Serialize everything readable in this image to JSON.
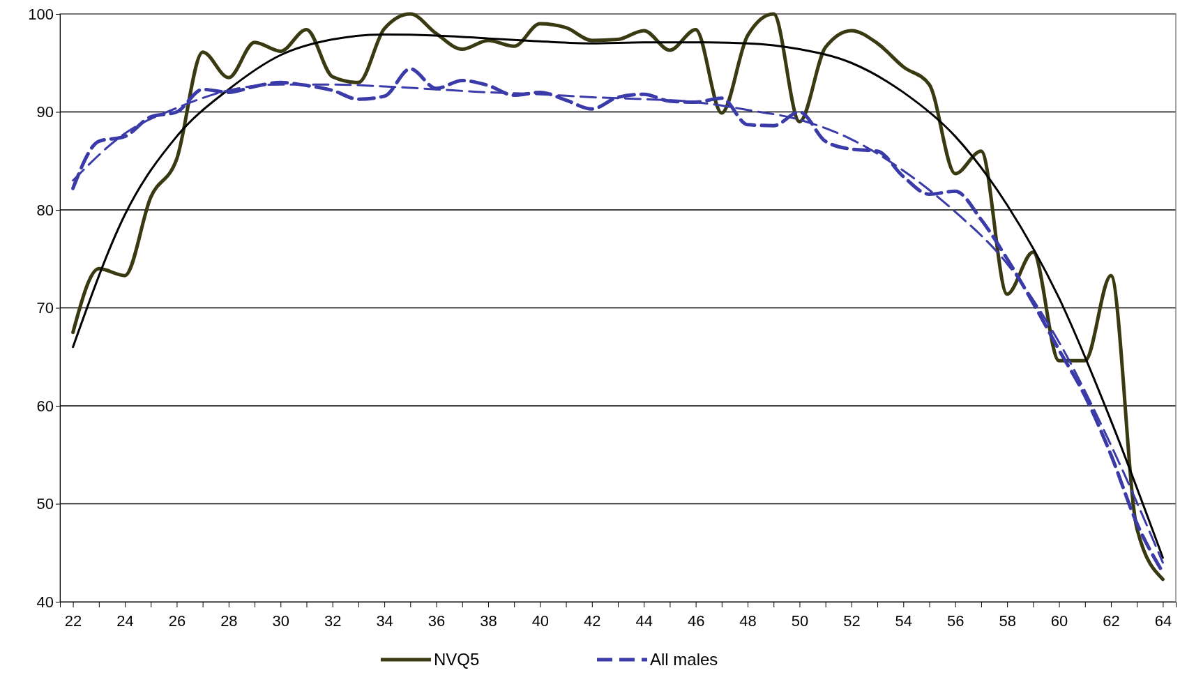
{
  "chart_data": {
    "type": "line",
    "x": [
      22,
      23,
      24,
      25,
      26,
      27,
      28,
      29,
      30,
      31,
      32,
      33,
      34,
      35,
      36,
      37,
      38,
      39,
      40,
      41,
      42,
      43,
      44,
      45,
      46,
      47,
      48,
      49,
      50,
      51,
      52,
      53,
      54,
      55,
      56,
      57,
      58,
      59,
      60,
      61,
      62,
      63,
      64
    ],
    "xlim": [
      21.5,
      64.5
    ],
    "xticks": [
      22,
      {
        "value": 23,
        "label": null
      },
      24,
      {
        "value": 25,
        "label": null
      },
      26,
      {
        "value": 27,
        "label": null
      },
      28,
      {
        "value": 29,
        "label": null
      },
      30,
      {
        "value": 31,
        "label": null
      },
      32,
      {
        "value": 33,
        "label": null
      },
      34,
      {
        "value": 35,
        "label": null
      },
      36,
      {
        "value": 37,
        "label": null
      },
      38,
      {
        "value": 39,
        "label": null
      },
      40,
      {
        "value": 41,
        "label": null
      },
      42,
      {
        "value": 43,
        "label": null
      },
      44,
      {
        "value": 45,
        "label": null
      },
      46,
      {
        "value": 47,
        "label": null
      },
      48,
      {
        "value": 49,
        "label": null
      },
      50,
      {
        "value": 51,
        "label": null
      },
      52,
      {
        "value": 53,
        "label": null
      },
      54,
      {
        "value": 55,
        "label": null
      },
      56,
      {
        "value": 57,
        "label": null
      },
      58,
      {
        "value": 59,
        "label": null
      },
      60,
      {
        "value": 61,
        "label": null
      },
      62,
      {
        "value": 63,
        "label": null
      },
      64
    ],
    "ylim": [
      40,
      100
    ],
    "yticks": [
      40,
      50,
      60,
      70,
      80,
      90,
      100
    ],
    "grid": "y",
    "legend": "bottom",
    "marker": "none",
    "series": [
      {
        "name": "NVQ5",
        "color": "#3a3a12",
        "line_style": "solid",
        "values": [
          67.5,
          74,
          73.3,
          81.3,
          85.2,
          96.1,
          93.5,
          97.1,
          96.2,
          98.4,
          93.6,
          93,
          98.5,
          100,
          98,
          96.4,
          97.3,
          96.7,
          99,
          98.6,
          97.3,
          97.4,
          98.3,
          96.3,
          98.4,
          89.9,
          97.8,
          100,
          89,
          96.6,
          98.3,
          97,
          94.6,
          92.8,
          83.7,
          86,
          71.4,
          75.7,
          64.6,
          64.6,
          73.3,
          47.5,
          42.3
        ]
      },
      {
        "name": "All males",
        "color": "#3a3aa8",
        "line_style": "dashed",
        "values": [
          82.2,
          87,
          87.5,
          89.5,
          90,
          92.3,
          92,
          92.6,
          93,
          92.7,
          92.2,
          91.3,
          91.6,
          94.4,
          92.4,
          93.2,
          92.7,
          91.7,
          92,
          91.2,
          90.3,
          91.5,
          91.8,
          91.1,
          91,
          91.4,
          88.7,
          88.6,
          90,
          87,
          86.2,
          86,
          83.4,
          81.6,
          81.9,
          79,
          75,
          70.5,
          65.7,
          61,
          55,
          48,
          43
        ]
      },
      {
        "color": "#000000",
        "line_style": "solid",
        "x": [
          22,
          24,
          26,
          28,
          30,
          32,
          34,
          36,
          38,
          40,
          42,
          44,
          46,
          48,
          50,
          52,
          54,
          56,
          58,
          60,
          62,
          64
        ],
        "values": [
          66,
          79.5,
          87.5,
          92.3,
          95.8,
          97.4,
          97.9,
          97.8,
          97.5,
          97.2,
          97,
          97.1,
          97.1,
          97,
          96.4,
          95,
          92,
          87.5,
          80.5,
          71,
          58.5,
          44.5
        ]
      },
      {
        "color": "#3a3aa8",
        "line_style": "dashed",
        "x": [
          22,
          24,
          26,
          28,
          30,
          32,
          34,
          36,
          38,
          40,
          42,
          44,
          46,
          48,
          50,
          52,
          54,
          56,
          58,
          60,
          62,
          64
        ],
        "values": [
          83,
          87.8,
          90.4,
          92.2,
          92.8,
          92.8,
          92.6,
          92.3,
          92,
          91.8,
          91.5,
          91.3,
          91,
          90.2,
          89.2,
          87.2,
          84,
          79.8,
          74.5,
          66.5,
          56,
          44
        ]
      }
    ]
  }
}
